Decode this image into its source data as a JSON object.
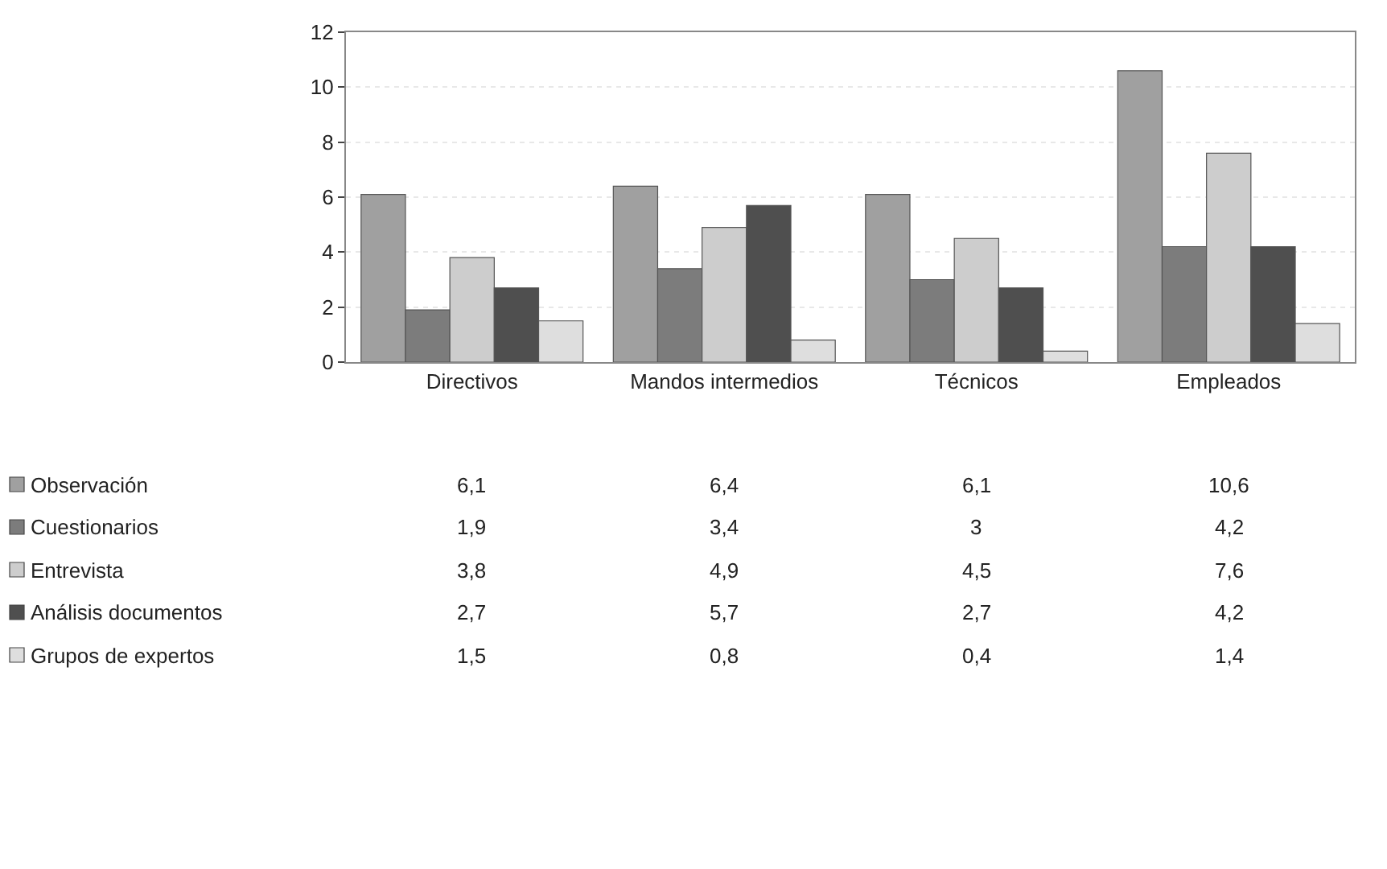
{
  "chart_data": {
    "type": "bar",
    "categories": [
      "Directivos",
      "Mandos intermedios",
      "Técnicos",
      "Empleados"
    ],
    "series": [
      {
        "name": "Observación",
        "color": "#a0a0a0",
        "values": [
          6.1,
          6.4,
          6.1,
          10.6
        ],
        "value_labels": [
          "6,1",
          "6,4",
          "6,1",
          "10,6"
        ]
      },
      {
        "name": "Cuestionarios",
        "color": "#7c7c7c",
        "values": [
          1.9,
          3.4,
          3,
          4.2
        ],
        "value_labels": [
          "1,9",
          "3,4",
          "3",
          "4,2"
        ]
      },
      {
        "name": "Entrevista",
        "color": "#cdcdcd",
        "values": [
          3.8,
          4.9,
          4.5,
          7.6
        ],
        "value_labels": [
          "3,8",
          "4,9",
          "4,5",
          "7,6"
        ]
      },
      {
        "name": "Análisis documentos",
        "color": "#4f4f4f",
        "values": [
          2.7,
          5.7,
          2.7,
          4.2
        ],
        "value_labels": [
          "2,7",
          "5,7",
          "2,7",
          "4,2"
        ]
      },
      {
        "name": "Grupos de expertos",
        "color": "#dedede",
        "values": [
          1.5,
          0.8,
          0.4,
          1.4
        ],
        "value_labels": [
          "1,5",
          "0,8",
          "0,4",
          "1,4"
        ]
      }
    ],
    "ylim": [
      0,
      12
    ],
    "yticks": [
      0,
      2,
      4,
      6,
      8,
      10,
      12
    ],
    "grid": "y",
    "legend": "bottom left"
  }
}
